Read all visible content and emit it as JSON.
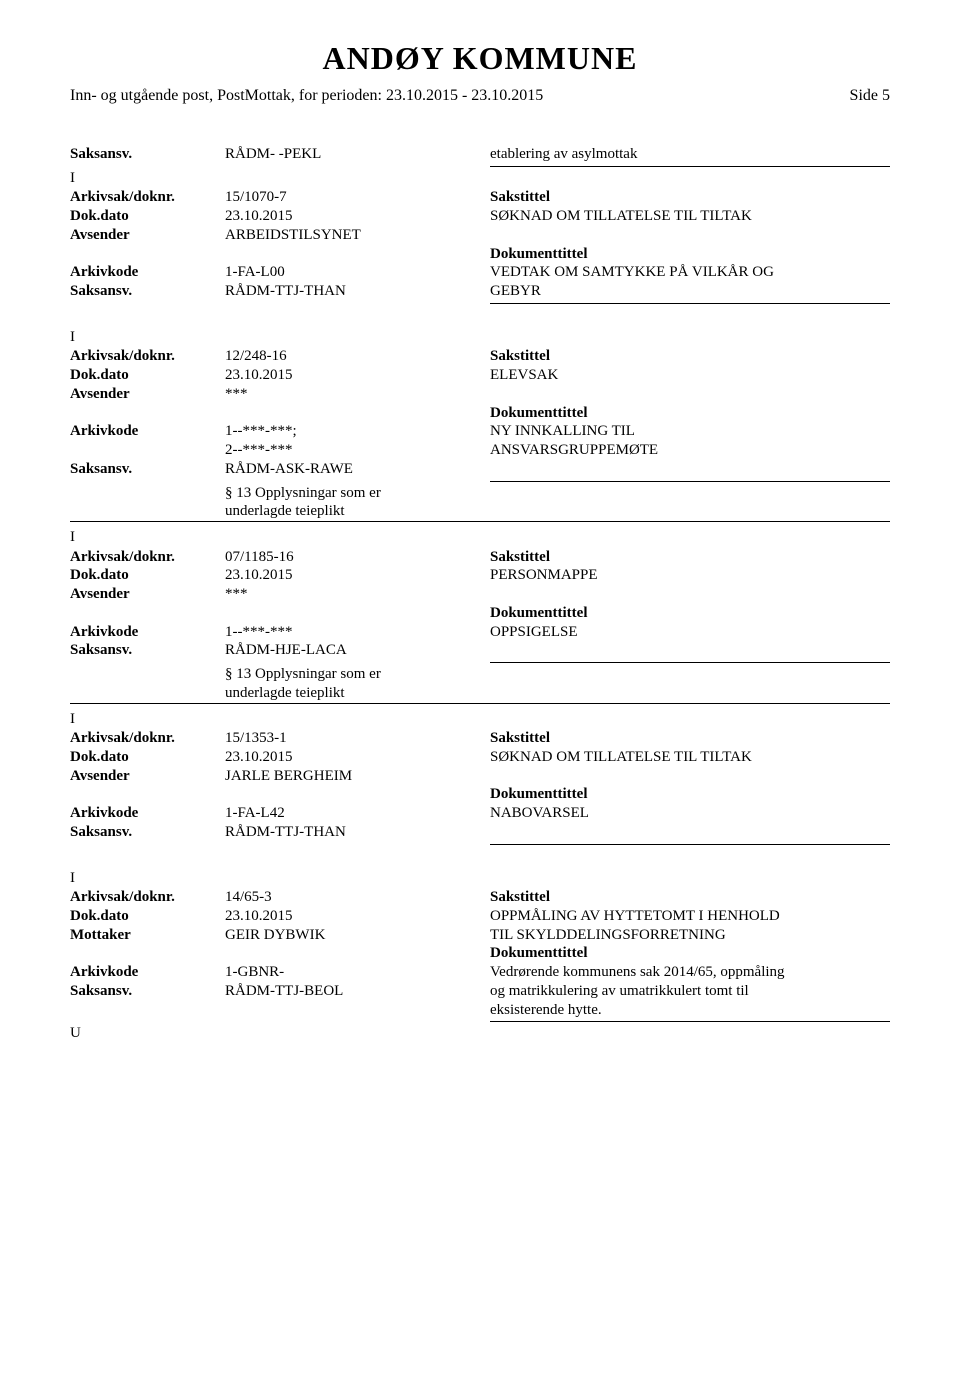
{
  "header": {
    "title": "ANDØY KOMMUNE",
    "subtitle": "Inn- og utgående post, PostMottak, for perioden: 23.10.2015 - 23.10.2015",
    "side": "Side 5"
  },
  "labels": {
    "saksansv": "Saksansv.",
    "arkivsak": "Arkivsak/doknr.",
    "dokdato": "Dok.dato",
    "avsender": "Avsender",
    "mottaker": "Mottaker",
    "arkivkode": "Arkivkode",
    "sakstittel": "Sakstittel",
    "dokumenttittel": "Dokumenttittel"
  },
  "entries": [
    {
      "top_saksansv_mid": "RÅDM- -PEKL",
      "top_right": "etablering av asylmottak",
      "io": "I",
      "arkivsak": "15/1070-7",
      "dokdato": "23.10.2015",
      "avsender": "ARBEIDSTILSYNET",
      "arkivkode": "1-FA-L00",
      "saksansv_mid": "RÅDM-TTJ-THAN",
      "sakstittel": "SØKNAD OM TILLATELSE TIL TILTAK",
      "doktittel1": "VEDTAK OM SAMTYKKE PÅ VILKÅR OG",
      "doktittel2": "GEBYR"
    },
    {
      "io": "I",
      "arkivsak": "12/248-16",
      "dokdato": "23.10.2015",
      "avsender": "***",
      "arkivkode1": "1--***-***;",
      "arkivkode2": "2--***-***",
      "saksansv_mid": "RÅDM-ASK-RAWE",
      "extra1": "§ 13 Opplysningar som er",
      "extra2": "underlagde teieplikt",
      "sakstittel": "ELEVSAK",
      "doktittel1": "NY INNKALLING TIL",
      "doktittel2": "ANSVARSGRUPPEMØTE"
    },
    {
      "io": "I",
      "arkivsak": "07/1185-16",
      "dokdato": "23.10.2015",
      "avsender": "***",
      "arkivkode": "1--***-***",
      "saksansv_mid": "RÅDM-HJE-LACA",
      "extra1": "§ 13 Opplysningar som er",
      "extra2": "underlagde teieplikt",
      "sakstittel": "PERSONMAPPE",
      "doktittel": "OPPSIGELSE"
    },
    {
      "io": "I",
      "arkivsak": "15/1353-1",
      "dokdato": "23.10.2015",
      "avsender": "JARLE BERGHEIM",
      "arkivkode": "1-FA-L42",
      "saksansv_mid": "RÅDM-TTJ-THAN",
      "sakstittel": "SØKNAD OM TILLATELSE TIL TILTAK",
      "doktittel": "NABOVARSEL"
    },
    {
      "io": "I",
      "arkivsak": "14/65-3",
      "dokdato": "23.10.2015",
      "mottaker": "GEIR DYBWIK",
      "arkivkode": "1-GBNR-",
      "saksansv_mid": "RÅDM-TTJ-BEOL",
      "sakstittel1": "OPPMÅLING AV HYTTETOMT I HENHOLD",
      "sakstittel2": "TIL SKYLDDELINGSFORRETNING",
      "doktittel1": "Vedrørende kommunens sak 2014/65,  oppmåling",
      "doktittel2": "og matrikkulering av umatrikkulert tomt til",
      "doktittel3": "eksisterende hytte.",
      "trailing": "U"
    }
  ]
}
